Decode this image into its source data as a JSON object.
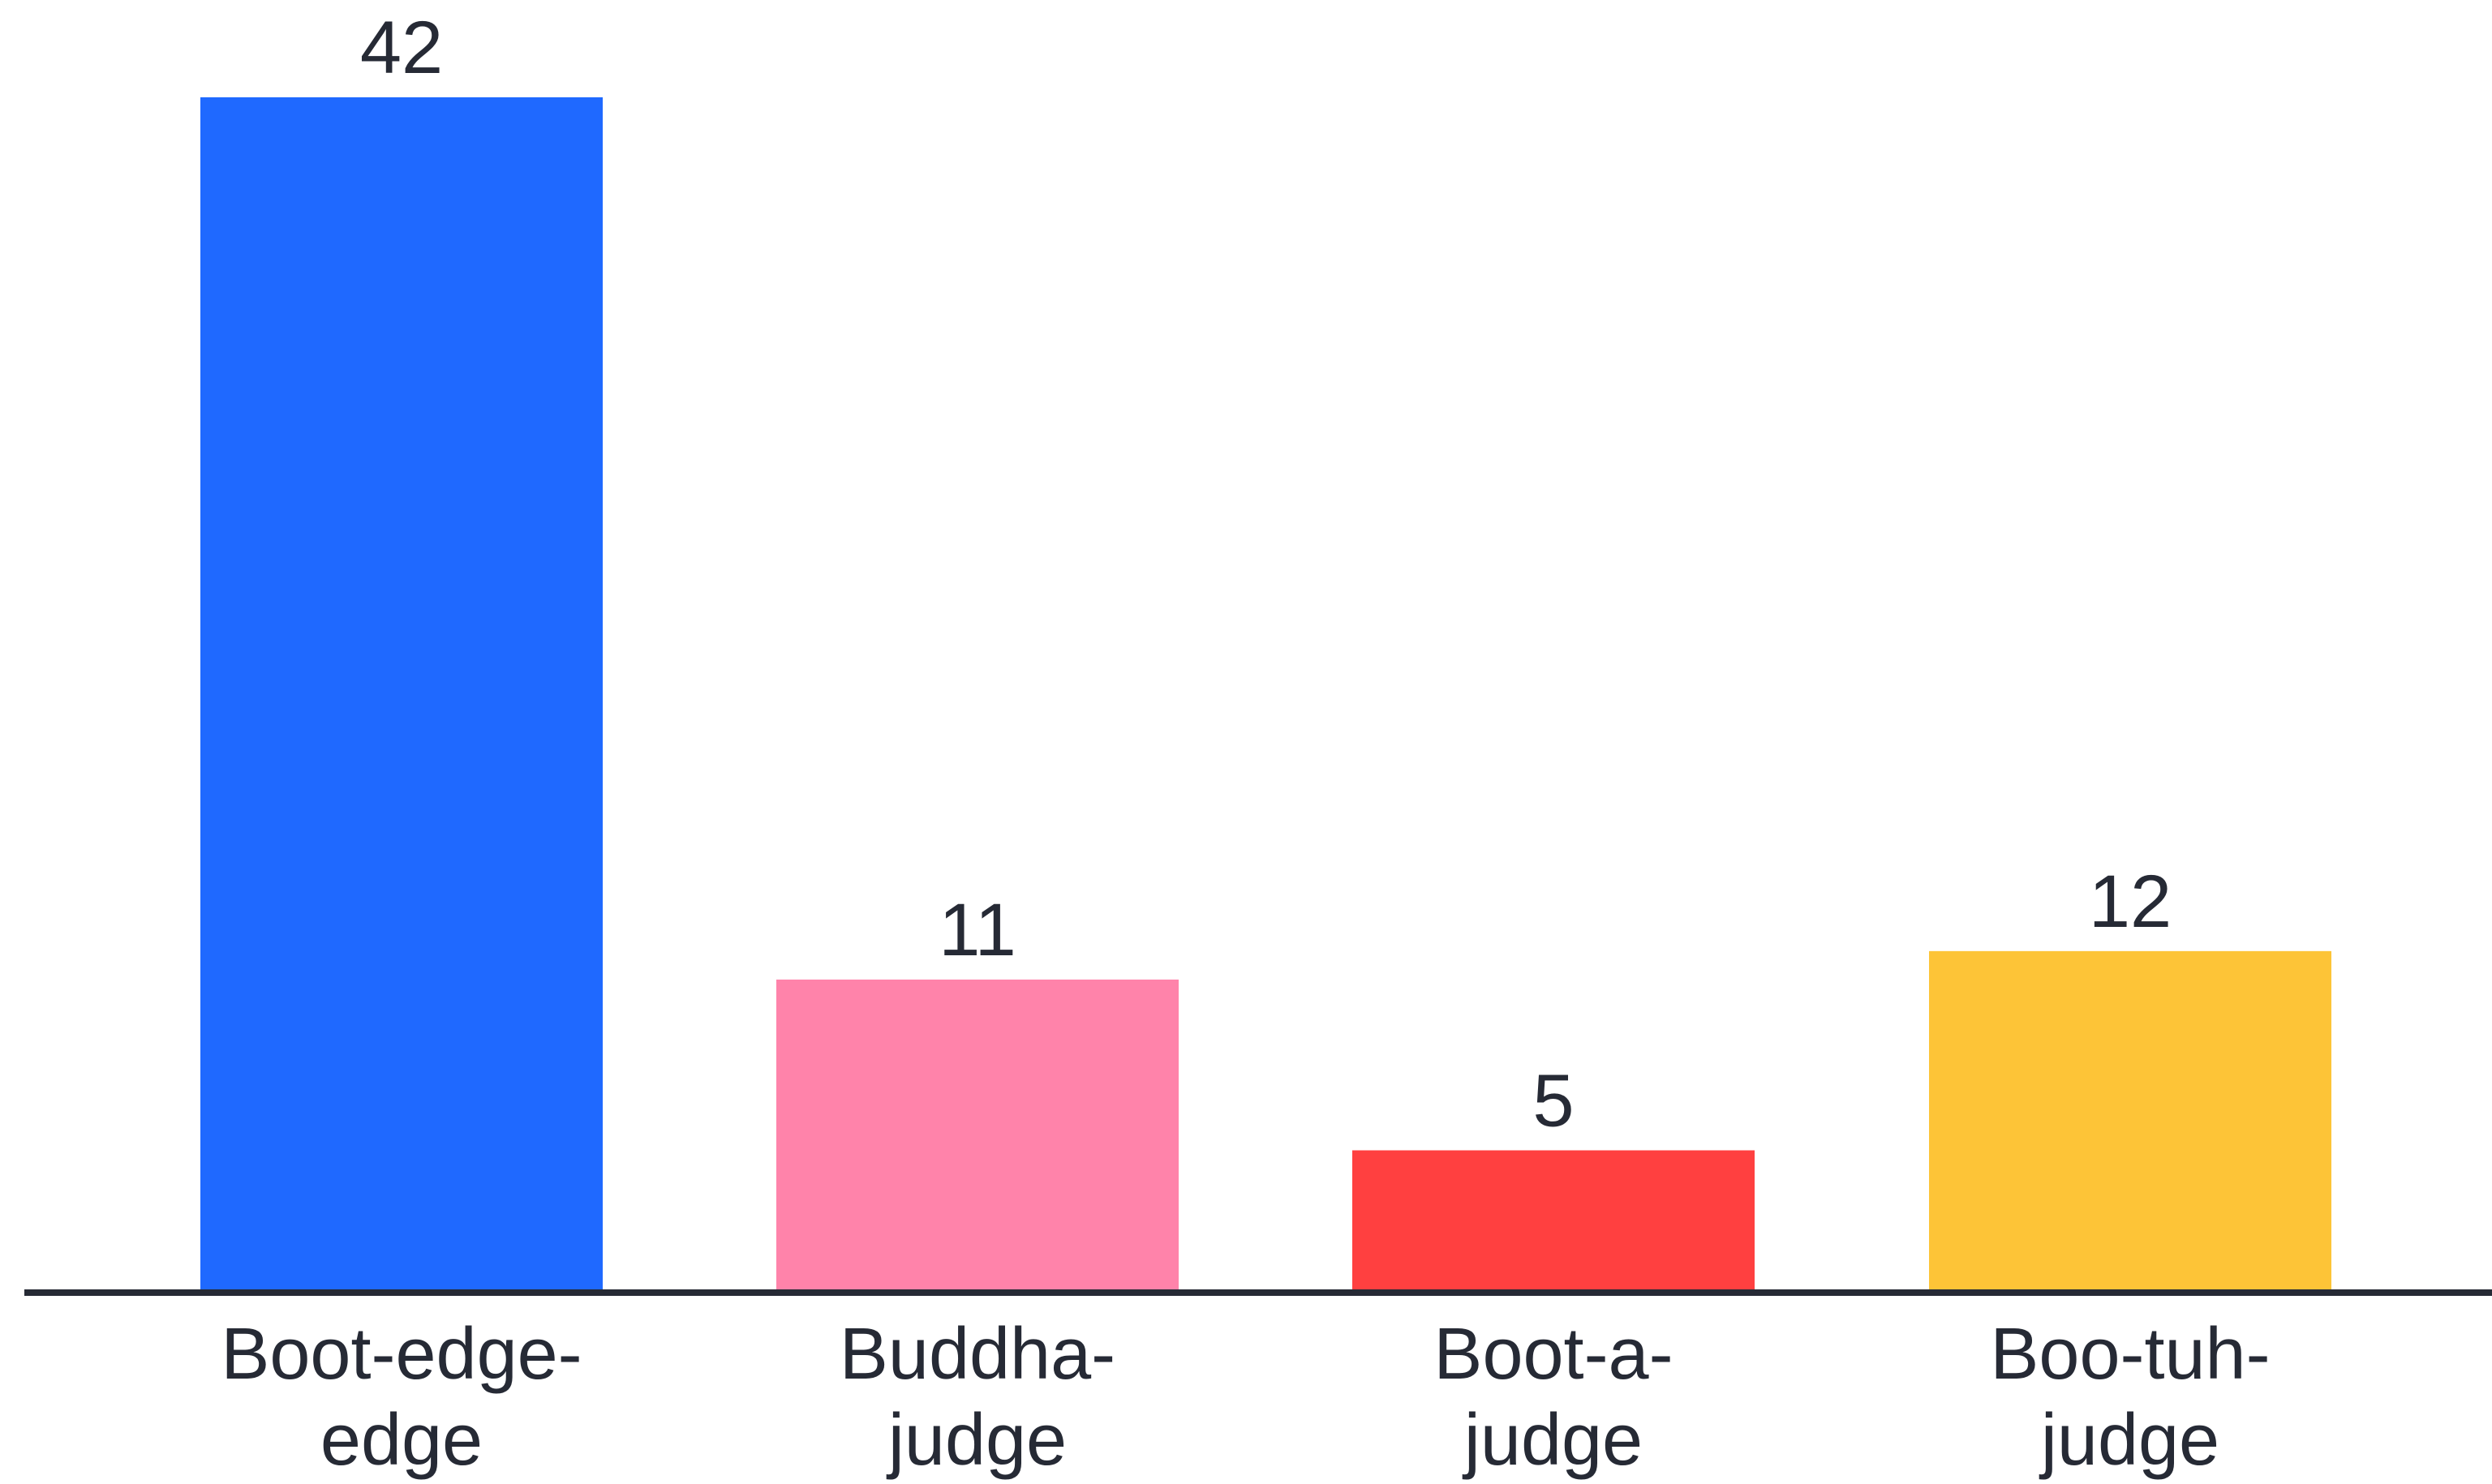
{
  "chart_data": {
    "type": "bar",
    "categories": [
      [
        "Boot-edge-",
        "edge"
      ],
      [
        "Buddha-",
        "judge"
      ],
      [
        "Boot-a-",
        "judge"
      ],
      [
        "Boo-tuh-",
        "judge"
      ]
    ],
    "values": [
      42,
      11,
      5,
      12
    ],
    "value_labels": [
      "42",
      "11",
      "5",
      "12"
    ],
    "colors": [
      "#1f69ff",
      "#ff83aa",
      "#ff4040",
      "#fdc437"
    ],
    "axis_color": "#262a35",
    "title": "",
    "xlabel": "",
    "ylabel": "",
    "ylim": [
      0,
      42
    ],
    "grid": false,
    "legend": "none"
  }
}
